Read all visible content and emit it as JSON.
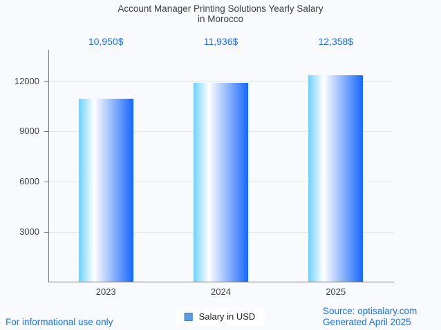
{
  "title": {
    "line1": "Account Manager Printing Solutions Yearly Salary",
    "line2": "in Morocco"
  },
  "chart_data": {
    "type": "bar",
    "categories": [
      "2023",
      "2024",
      "2025"
    ],
    "series": [
      {
        "name": "Salary in USD",
        "values": [
          10950,
          11936,
          12358
        ]
      }
    ],
    "value_labels": [
      "10,950$",
      "11,936$",
      "12,358$"
    ],
    "title": "Account Manager Printing Solutions Yearly Salary in Morocco",
    "xlabel": "",
    "ylabel": "",
    "y_ticks": [
      3000,
      6000,
      9000,
      12000
    ],
    "ylim": [
      0,
      13900
    ],
    "grid": true,
    "legend_position": "bottom"
  },
  "legend": {
    "label": "Salary in USD"
  },
  "footer": {
    "disclaimer": "For informational use only",
    "source": "Source: optisalary.com",
    "generated": "Generated April 2025"
  },
  "colors": {
    "background": "#f8fafd",
    "title_text": "#3c4043",
    "annotation_blue": "#1b6ef3",
    "link_blue": "#1a73e8",
    "axis": "#70757a",
    "gridline": "#e4e7ea",
    "bar_gradient_left": "#6fd1fb",
    "bar_gradient_mid": "#ffffff",
    "bar_gradient_right": "#1667fb",
    "legend_swatch_fill": "#5b9ee6",
    "legend_swatch_border": "#3f7fd0"
  }
}
